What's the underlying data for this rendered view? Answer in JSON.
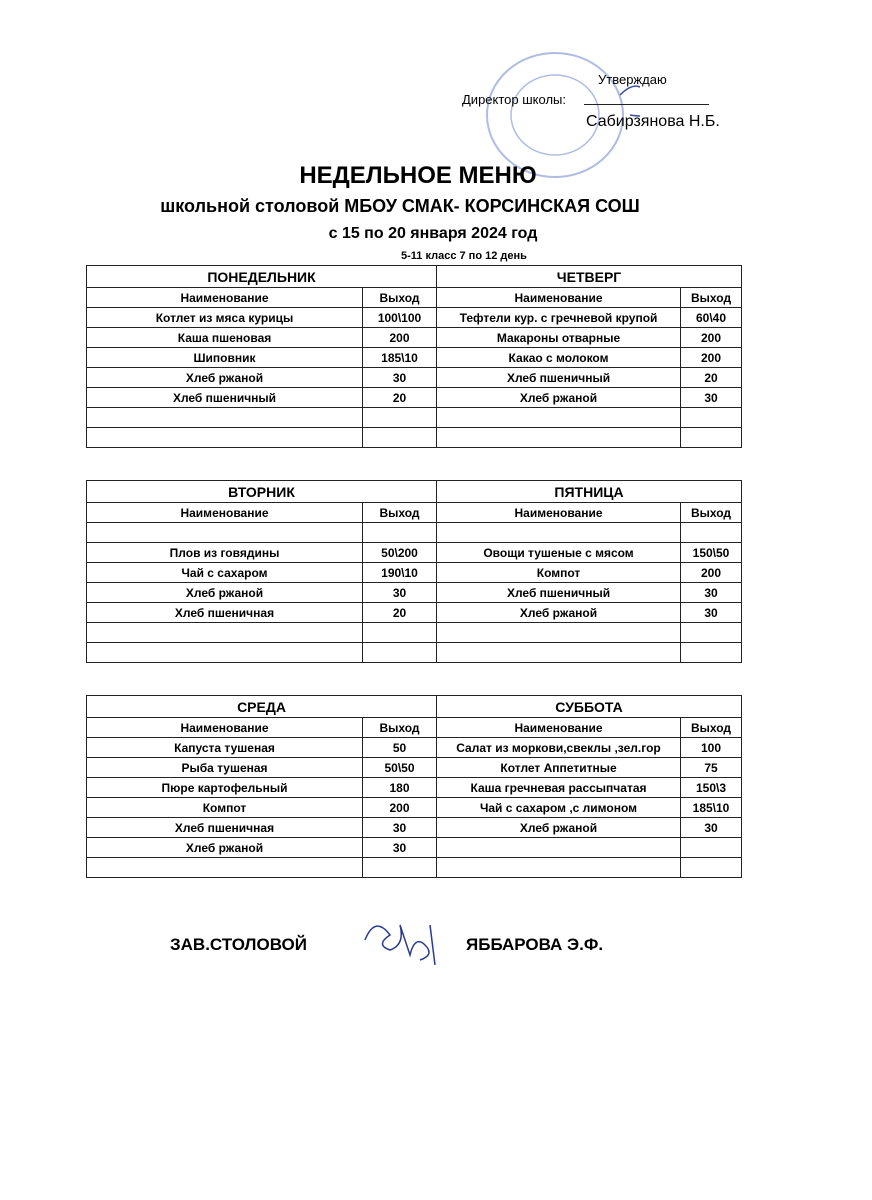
{
  "approval": {
    "approve": "Утверждаю",
    "director": "Директор школы:",
    "name": "Сабирзянова Н.Б."
  },
  "header": {
    "title": "НЕДЕЛЬНОЕ МЕНЮ",
    "subtitle": "школьной столовой МБОУ СМАК- КОРСИНСКАЯ СОШ",
    "dates": "с 15 по 20 января  2024 год",
    "grade": "5-11 класс  7 по 12 день"
  },
  "columns": {
    "name": "Наименование",
    "output": "Выход"
  },
  "blocks": [
    {
      "days": [
        {
          "day": "ПОНЕДЕЛЬНИК",
          "rows": [
            [
              "Котлет из мяса курицы",
              "100\\100"
            ],
            [
              "Каша пшеновая",
              200
            ],
            [
              "Шиповник",
              "185\\10"
            ],
            [
              "Хлеб ржаной",
              30
            ],
            [
              "Хлеб пшеничный",
              20
            ]
          ]
        },
        {
          "day": "ЧЕТВЕРГ",
          "rows": [
            [
              "Тефтели кур. с гречневой крупой",
              "60\\40"
            ],
            [
              "Макароны отварные",
              200
            ],
            [
              "Какао с молоком",
              200
            ],
            [
              "Хлеб пшеничный",
              20
            ],
            [
              "Хлеб ржаной",
              30
            ]
          ]
        }
      ]
    },
    {
      "days": [
        {
          "day": "ВТОРНИК",
          "rows": [
            [
              "Плов из говядины",
              "50\\200"
            ],
            [
              "Чай с сахаром",
              "190\\10"
            ],
            [
              "Хлеб ржаной",
              30
            ],
            [
              "Хлеб пшеничная",
              20
            ]
          ]
        },
        {
          "day": "ПЯТНИЦА",
          "rows": [
            [
              "Овощи тушеные с мясом",
              "150\\50"
            ],
            [
              "Компот",
              200
            ],
            [
              "Хлеб пшеничный",
              30
            ],
            [
              "Хлеб ржаной",
              30
            ]
          ]
        }
      ]
    },
    {
      "days": [
        {
          "day": "СРЕДА",
          "rows": [
            [
              "Капуста тушеная",
              50
            ],
            [
              "Рыба тушеная",
              "50\\50"
            ],
            [
              "Пюре картофельный",
              180
            ],
            [
              "Компот",
              200
            ],
            [
              "Хлеб пшеничная",
              30
            ],
            [
              "Хлеб ржаной",
              30
            ]
          ]
        },
        {
          "day": "СУББОТА",
          "rows": [
            [
              "Салат из моркови,свеклы ,зел.гор",
              100
            ],
            [
              "Котлет Аппетитные",
              75
            ],
            [
              "Каша гречневая рассыпчатая",
              "150\\3"
            ],
            [
              "Чай с сахаром ,с лимоном",
              "185\\10"
            ],
            [
              "Хлеб ржаной",
              30
            ]
          ]
        }
      ]
    }
  ],
  "footer": {
    "role": "ЗАВ.СТОЛОВОЙ",
    "name": "ЯББАРОВА Э.Ф."
  }
}
